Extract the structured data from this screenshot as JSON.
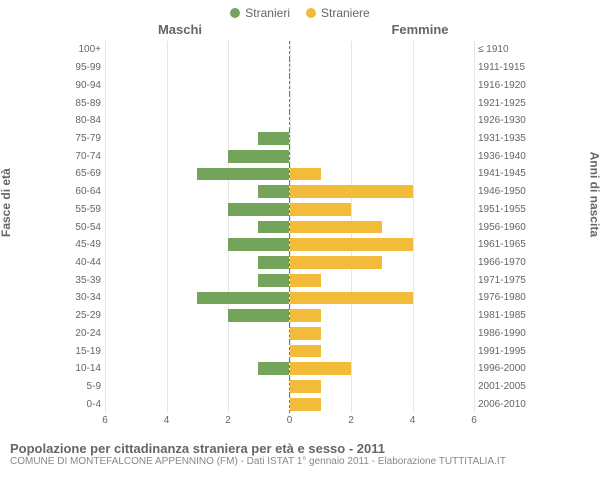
{
  "legend": {
    "male": {
      "label": "Stranieri",
      "color": "#74a35b"
    },
    "female": {
      "label": "Straniere",
      "color": "#f2bb3a"
    }
  },
  "headers": {
    "left": "Maschi",
    "right": "Femmine"
  },
  "axis_labels": {
    "left": "Fasce di età",
    "right": "Anni di nascita"
  },
  "chart": {
    "type": "population-pyramid",
    "xmax": 6,
    "xticks": [
      6,
      4,
      2,
      0,
      2,
      4,
      6
    ],
    "grid_color": "#e6e6e6",
    "center_line_color": "#8c7a3a",
    "background_color": "#ffffff",
    "bar_color_male": "#74a35b",
    "bar_color_female": "#f2bb3a",
    "label_fontsize": 10,
    "rows": [
      {
        "age": "100+",
        "birth": "≤ 1910",
        "m": 0.0,
        "f": 0.0
      },
      {
        "age": "95-99",
        "birth": "1911-1915",
        "m": 0.0,
        "f": 0.0
      },
      {
        "age": "90-94",
        "birth": "1916-1920",
        "m": 0.0,
        "f": 0.0
      },
      {
        "age": "85-89",
        "birth": "1921-1925",
        "m": 0.0,
        "f": 0.0
      },
      {
        "age": "80-84",
        "birth": "1926-1930",
        "m": 0.0,
        "f": 0.0
      },
      {
        "age": "75-79",
        "birth": "1931-1935",
        "m": 1.0,
        "f": 0.0
      },
      {
        "age": "70-74",
        "birth": "1936-1940",
        "m": 2.0,
        "f": 0.0
      },
      {
        "age": "65-69",
        "birth": "1941-1945",
        "m": 3.0,
        "f": 1.0
      },
      {
        "age": "60-64",
        "birth": "1946-1950",
        "m": 1.0,
        "f": 4.0
      },
      {
        "age": "55-59",
        "birth": "1951-1955",
        "m": 2.0,
        "f": 2.0
      },
      {
        "age": "50-54",
        "birth": "1956-1960",
        "m": 1.0,
        "f": 3.0
      },
      {
        "age": "45-49",
        "birth": "1961-1965",
        "m": 2.0,
        "f": 4.0
      },
      {
        "age": "40-44",
        "birth": "1966-1970",
        "m": 1.0,
        "f": 3.0
      },
      {
        "age": "35-39",
        "birth": "1971-1975",
        "m": 1.0,
        "f": 1.0
      },
      {
        "age": "30-34",
        "birth": "1976-1980",
        "m": 3.0,
        "f": 4.0
      },
      {
        "age": "25-29",
        "birth": "1981-1985",
        "m": 2.0,
        "f": 1.0
      },
      {
        "age": "20-24",
        "birth": "1986-1990",
        "m": 0.0,
        "f": 1.0
      },
      {
        "age": "15-19",
        "birth": "1991-1995",
        "m": 0.0,
        "f": 1.0
      },
      {
        "age": "10-14",
        "birth": "1996-2000",
        "m": 1.0,
        "f": 2.0
      },
      {
        "age": "5-9",
        "birth": "2001-2005",
        "m": 0.0,
        "f": 1.0
      },
      {
        "age": "0-4",
        "birth": "2006-2010",
        "m": 0.0,
        "f": 1.0
      }
    ]
  },
  "footer": {
    "title": "Popolazione per cittadinanza straniera per età e sesso - 2011",
    "subtitle": "COMUNE DI MONTEFALCONE APPENNINO (FM) - Dati ISTAT 1° gennaio 2011 - Elaborazione TUTTITALIA.IT"
  }
}
